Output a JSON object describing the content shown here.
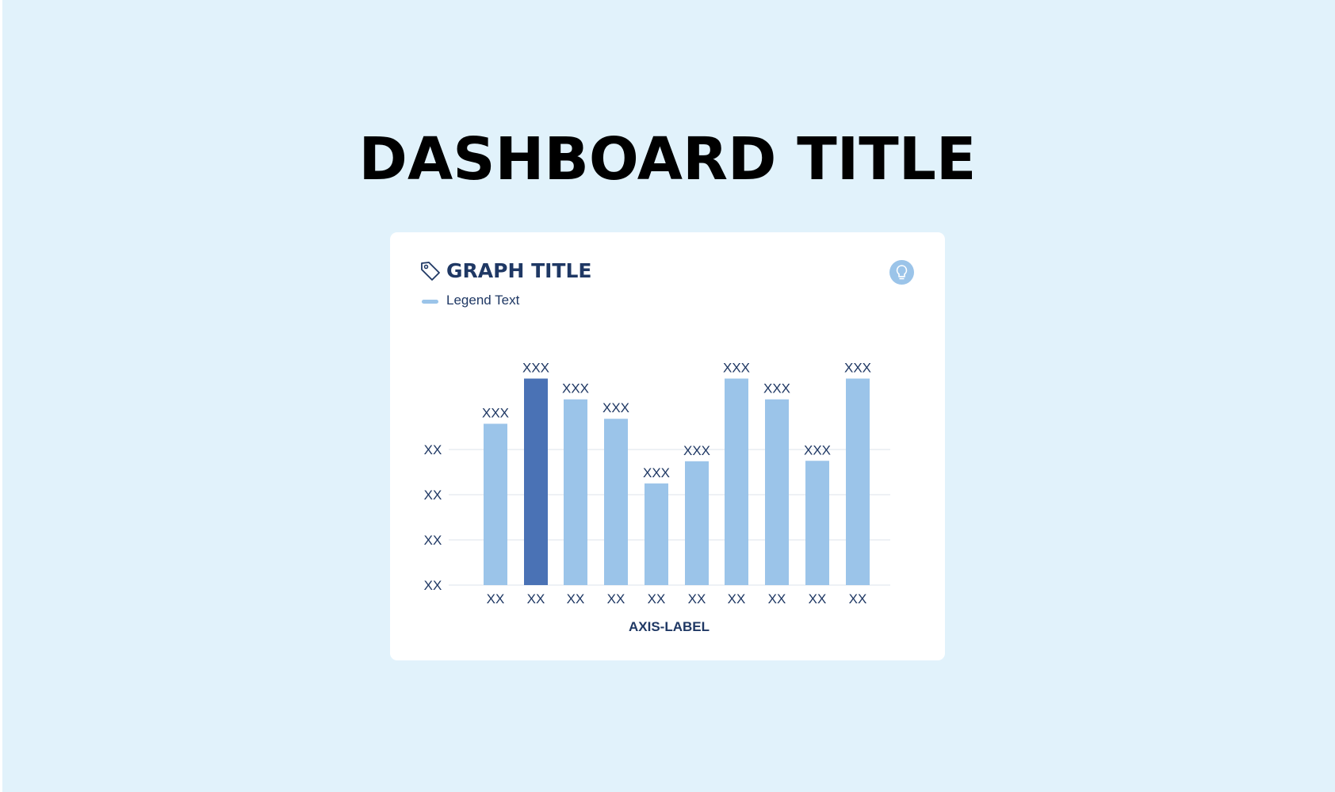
{
  "dashboard_title": "DASHBOARD TITLE",
  "card": {
    "title": "GRAPH TITLE",
    "title_icon": "tag-icon",
    "action_icon": "lightbulb-icon",
    "legend": [
      {
        "label": "Legend Text",
        "color": "#9bc4e9"
      }
    ]
  },
  "chart_data": {
    "type": "bar",
    "categories": [
      "XX",
      "XX",
      "XX",
      "XX",
      "XX",
      "XX",
      "XX",
      "XX",
      "XX",
      "XX"
    ],
    "values": [
      3.57,
      4.57,
      4.11,
      3.68,
      2.25,
      2.74,
      4.57,
      4.11,
      2.75,
      4.57
    ],
    "data_labels": [
      "XXX",
      "XXX",
      "XXX",
      "XXX",
      "XXX",
      "XXX",
      "XXX",
      "XXX",
      "XXX",
      "XXX"
    ],
    "y_ticks": [
      0,
      1,
      2,
      3
    ],
    "y_tick_labels": [
      "XX",
      "XX",
      "XX",
      "XX"
    ],
    "xlabel": "AXIS-LABEL",
    "ylabel": "",
    "ylim": [
      0,
      4.6
    ],
    "grid": true,
    "legend_position": "top-left",
    "colors": {
      "bar": "#9bc4e9",
      "highlight": "#4a72b5",
      "grid": "#eef1f5"
    },
    "highlight_index": 1
  }
}
